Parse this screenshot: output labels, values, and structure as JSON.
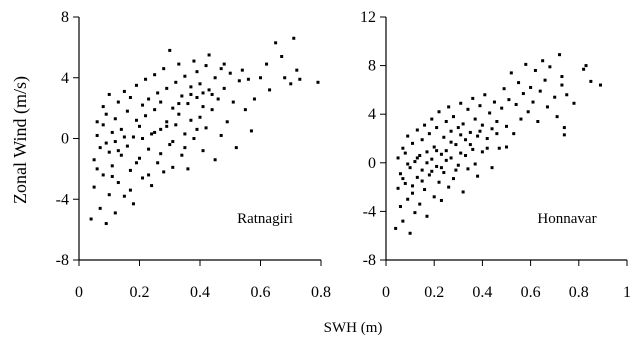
{
  "chart_data": [
    {
      "type": "scatter",
      "panel_label": "Ratnagiri",
      "xlabel": "SWH (m)",
      "ylabel": "Zonal Wind (m/s)",
      "xlim": [
        0,
        0.8
      ],
      "ylim": [
        -8,
        8
      ],
      "x_ticks": [
        "0",
        "0.2",
        "0.4",
        "0.6",
        "0.8"
      ],
      "y_ticks": [
        "8",
        "4",
        "0",
        "-4",
        "-8"
      ],
      "points": [
        [
          0.04,
          -5.3
        ],
        [
          0.05,
          -3.2
        ],
        [
          0.05,
          -1.4
        ],
        [
          0.06,
          0.2
        ],
        [
          0.06,
          1.1
        ],
        [
          0.07,
          -0.6
        ],
        [
          0.07,
          -4.6
        ],
        [
          0.08,
          2.1
        ],
        [
          0.08,
          -2.4
        ],
        [
          0.08,
          0.9
        ],
        [
          0.09,
          -5.6
        ],
        [
          0.09,
          1.6
        ],
        [
          0.1,
          -0.9
        ],
        [
          0.1,
          2.9
        ],
        [
          0.1,
          -3.7
        ],
        [
          0.11,
          0.4
        ],
        [
          0.11,
          -1.8
        ],
        [
          0.12,
          1.3
        ],
        [
          0.12,
          -4.9
        ],
        [
          0.12,
          -0.2
        ],
        [
          0.13,
          2.4
        ],
        [
          0.13,
          -2.9
        ],
        [
          0.14,
          0.6
        ],
        [
          0.14,
          -1.1
        ],
        [
          0.15,
          3.1
        ],
        [
          0.15,
          -3.8
        ],
        [
          0.16,
          1.8
        ],
        [
          0.16,
          -0.5
        ],
        [
          0.17,
          -2.1
        ],
        [
          0.17,
          2.7
        ],
        [
          0.18,
          0.1
        ],
        [
          0.18,
          -4.3
        ],
        [
          0.19,
          1.2
        ],
        [
          0.19,
          3.5
        ],
        [
          0.2,
          -1.3
        ],
        [
          0.2,
          0.8
        ],
        [
          0.21,
          2.2
        ],
        [
          0.21,
          -2.6
        ],
        [
          0.22,
          1.5
        ],
        [
          0.22,
          3.9
        ],
        [
          0.23,
          -0.7
        ],
        [
          0.23,
          2.6
        ],
        [
          0.24,
          0.3
        ],
        [
          0.24,
          -3.1
        ],
        [
          0.25,
          1.9
        ],
        [
          0.25,
          4.2
        ],
        [
          0.26,
          -1.6
        ],
        [
          0.26,
          3.0
        ],
        [
          0.27,
          0.6
        ],
        [
          0.27,
          2.4
        ],
        [
          0.28,
          -2.2
        ],
        [
          0.28,
          4.6
        ],
        [
          0.29,
          1.1
        ],
        [
          0.29,
          3.3
        ],
        [
          0.3,
          5.8
        ],
        [
          0.3,
          -0.4
        ],
        [
          0.31,
          2.0
        ],
        [
          0.31,
          -1.9
        ],
        [
          0.32,
          3.7
        ],
        [
          0.32,
          0.9
        ],
        [
          0.33,
          4.9
        ],
        [
          0.33,
          1.6
        ],
        [
          0.34,
          -1.1
        ],
        [
          0.34,
          2.8
        ],
        [
          0.35,
          0.3
        ],
        [
          0.35,
          4.1
        ],
        [
          0.36,
          2.3
        ],
        [
          0.36,
          -2.0
        ],
        [
          0.37,
          3.4
        ],
        [
          0.37,
          1.2
        ],
        [
          0.38,
          5.1
        ],
        [
          0.38,
          0.0
        ],
        [
          0.39,
          2.7
        ],
        [
          0.39,
          4.4
        ],
        [
          0.4,
          1.4
        ],
        [
          0.4,
          3.6
        ],
        [
          0.41,
          -0.8
        ],
        [
          0.41,
          2.1
        ],
        [
          0.42,
          4.8
        ],
        [
          0.42,
          0.7
        ],
        [
          0.43,
          3.2
        ],
        [
          0.43,
          5.5
        ],
        [
          0.44,
          1.9
        ],
        [
          0.45,
          4.0
        ],
        [
          0.45,
          -1.4
        ],
        [
          0.46,
          2.6
        ],
        [
          0.47,
          4.6
        ],
        [
          0.47,
          0.2
        ],
        [
          0.48,
          3.3
        ],
        [
          0.49,
          1.1
        ],
        [
          0.5,
          4.3
        ],
        [
          0.51,
          2.4
        ],
        [
          0.52,
          -0.6
        ],
        [
          0.53,
          3.8
        ],
        [
          0.54,
          4.5
        ],
        [
          0.55,
          1.9
        ],
        [
          0.56,
          3.9
        ],
        [
          0.57,
          0.5
        ],
        [
          0.58,
          2.6
        ],
        [
          0.6,
          4.0
        ],
        [
          0.62,
          4.9
        ],
        [
          0.63,
          3.2
        ],
        [
          0.65,
          6.3
        ],
        [
          0.67,
          5.4
        ],
        [
          0.68,
          4.0
        ],
        [
          0.7,
          3.6
        ],
        [
          0.71,
          6.6
        ],
        [
          0.72,
          4.5
        ],
        [
          0.73,
          3.9
        ],
        [
          0.79,
          3.7
        ],
        [
          0.06,
          -2.0
        ],
        [
          0.09,
          -0.3
        ],
        [
          0.11,
          -2.5
        ],
        [
          0.13,
          -0.8
        ],
        [
          0.15,
          0.1
        ],
        [
          0.17,
          -3.4
        ],
        [
          0.19,
          -1.6
        ],
        [
          0.21,
          0.0
        ],
        [
          0.23,
          -2.4
        ],
        [
          0.25,
          0.4
        ],
        [
          0.27,
          -1.0
        ],
        [
          0.29,
          0.8
        ],
        [
          0.31,
          -0.2
        ],
        [
          0.33,
          2.3
        ],
        [
          0.35,
          -0.6
        ],
        [
          0.37,
          2.9
        ],
        [
          0.39,
          0.6
        ],
        [
          0.41,
          3.0
        ],
        [
          0.44,
          2.9
        ],
        [
          0.48,
          4.9
        ]
      ]
    },
    {
      "type": "scatter",
      "panel_label": "Honnavar",
      "xlabel": "SWH (m)",
      "ylabel": "",
      "xlim": [
        0,
        1
      ],
      "ylim": [
        -8,
        12
      ],
      "x_ticks": [
        "0",
        "0.2",
        "0.4",
        "0.6",
        "0.8",
        "1"
      ],
      "y_ticks": [
        "12",
        "8",
        "4",
        "0",
        "-4",
        "-8"
      ],
      "points": [
        [
          0.04,
          -5.4
        ],
        [
          0.05,
          -2.1
        ],
        [
          0.05,
          0.4
        ],
        [
          0.06,
          -3.6
        ],
        [
          0.06,
          -0.9
        ],
        [
          0.07,
          1.2
        ],
        [
          0.07,
          -4.8
        ],
        [
          0.08,
          -1.7
        ],
        [
          0.08,
          0.8
        ],
        [
          0.09,
          -3.0
        ],
        [
          0.09,
          2.2
        ],
        [
          0.1,
          -0.4
        ],
        [
          0.1,
          -5.8
        ],
        [
          0.11,
          1.6
        ],
        [
          0.11,
          -2.5
        ],
        [
          0.12,
          0.1
        ],
        [
          0.12,
          -4.1
        ],
        [
          0.13,
          2.7
        ],
        [
          0.13,
          -1.2
        ],
        [
          0.14,
          0.6
        ],
        [
          0.14,
          -3.4
        ],
        [
          0.15,
          1.9
        ],
        [
          0.15,
          -0.6
        ],
        [
          0.16,
          3.1
        ],
        [
          0.16,
          -2.2
        ],
        [
          0.17,
          0.9
        ],
        [
          0.17,
          -4.4
        ],
        [
          0.18,
          2.4
        ],
        [
          0.18,
          -1.0
        ],
        [
          0.19,
          0.3
        ],
        [
          0.19,
          3.6
        ],
        [
          0.2,
          -2.8
        ],
        [
          0.2,
          1.3
        ],
        [
          0.21,
          -0.3
        ],
        [
          0.21,
          2.9
        ],
        [
          0.22,
          -1.6
        ],
        [
          0.22,
          4.2
        ],
        [
          0.23,
          0.7
        ],
        [
          0.23,
          -3.1
        ],
        [
          0.24,
          2.1
        ],
        [
          0.24,
          -0.8
        ],
        [
          0.25,
          3.4
        ],
        [
          0.25,
          1.0
        ],
        [
          0.26,
          -2.0
        ],
        [
          0.26,
          4.6
        ],
        [
          0.27,
          0.4
        ],
        [
          0.27,
          2.6
        ],
        [
          0.28,
          -1.3
        ],
        [
          0.28,
          3.8
        ],
        [
          0.29,
          1.5
        ],
        [
          0.3,
          -0.2
        ],
        [
          0.3,
          2.9
        ],
        [
          0.31,
          4.9
        ],
        [
          0.31,
          0.8
        ],
        [
          0.32,
          -2.4
        ],
        [
          0.32,
          3.2
        ],
        [
          0.33,
          1.9
        ],
        [
          0.34,
          4.4
        ],
        [
          0.34,
          -0.5
        ],
        [
          0.35,
          2.5
        ],
        [
          0.36,
          5.3
        ],
        [
          0.36,
          1.1
        ],
        [
          0.37,
          3.6
        ],
        [
          0.38,
          -1.1
        ],
        [
          0.38,
          2.2
        ],
        [
          0.39,
          4.7
        ],
        [
          0.4,
          0.9
        ],
        [
          0.4,
          3.1
        ],
        [
          0.41,
          5.6
        ],
        [
          0.42,
          2.0
        ],
        [
          0.43,
          4.1
        ],
        [
          0.44,
          -0.4
        ],
        [
          0.44,
          2.8
        ],
        [
          0.45,
          5.0
        ],
        [
          0.46,
          3.4
        ],
        [
          0.47,
          1.2
        ],
        [
          0.48,
          4.5
        ],
        [
          0.49,
          6.1
        ],
        [
          0.5,
          3.0
        ],
        [
          0.51,
          5.2
        ],
        [
          0.52,
          7.4
        ],
        [
          0.53,
          2.4
        ],
        [
          0.54,
          4.8
        ],
        [
          0.55,
          6.6
        ],
        [
          0.56,
          3.6
        ],
        [
          0.57,
          5.7
        ],
        [
          0.58,
          8.1
        ],
        [
          0.59,
          4.2
        ],
        [
          0.6,
          6.2
        ],
        [
          0.61,
          5.0
        ],
        [
          0.62,
          7.6
        ],
        [
          0.63,
          3.4
        ],
        [
          0.64,
          5.9
        ],
        [
          0.65,
          8.4
        ],
        [
          0.66,
          6.8
        ],
        [
          0.67,
          4.6
        ],
        [
          0.68,
          7.9
        ],
        [
          0.7,
          5.4
        ],
        [
          0.71,
          3.8
        ],
        [
          0.72,
          8.9
        ],
        [
          0.73,
          6.4
        ],
        [
          0.74,
          2.3
        ],
        [
          0.75,
          5.6
        ],
        [
          0.78,
          4.9
        ],
        [
          0.82,
          7.7
        ],
        [
          0.83,
          8.0
        ],
        [
          0.85,
          6.7
        ],
        [
          0.89,
          6.4
        ],
        [
          0.74,
          2.9
        ],
        [
          0.73,
          7.1
        ],
        [
          0.07,
          -1.3
        ],
        [
          0.09,
          -0.1
        ],
        [
          0.11,
          -1.9
        ],
        [
          0.13,
          0.4
        ],
        [
          0.15,
          -1.5
        ],
        [
          0.17,
          0.0
        ],
        [
          0.19,
          -0.7
        ],
        [
          0.21,
          1.0
        ],
        [
          0.23,
          -0.4
        ],
        [
          0.25,
          0.2
        ],
        [
          0.27,
          1.7
        ],
        [
          0.29,
          -0.6
        ],
        [
          0.31,
          2.3
        ],
        [
          0.33,
          0.6
        ],
        [
          0.35,
          1.5
        ],
        [
          0.37,
          -0.1
        ],
        [
          0.39,
          2.6
        ],
        [
          0.42,
          1.2
        ],
        [
          0.46,
          2.4
        ],
        [
          0.5,
          1.3
        ]
      ]
    }
  ]
}
